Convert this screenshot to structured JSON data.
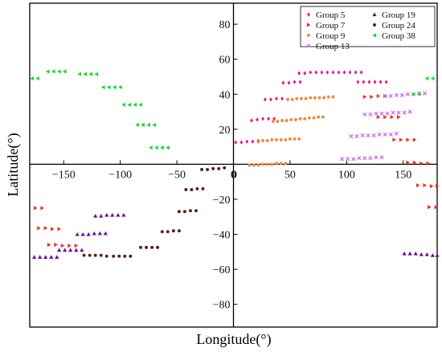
{
  "chart_data": {
    "type": "scatter",
    "xlabel": "Longitude(°)",
    "ylabel": "Latitude(°)",
    "xlim": [
      -180,
      180
    ],
    "ylim": [
      -93,
      92
    ],
    "xticks": [
      -150,
      -100,
      -50,
      0,
      50,
      100,
      150
    ],
    "yticks": [
      -80,
      -60,
      -40,
      -20,
      0,
      20,
      40,
      60,
      80
    ],
    "grid": false,
    "legend_position": "top-right",
    "series": [
      {
        "name": "Group 5",
        "marker": "diamond",
        "color": "#e8198a",
        "points": [
          [
            2,
            12.5
          ],
          [
            7,
            12.5
          ],
          [
            12,
            13
          ],
          [
            17,
            13
          ],
          [
            22,
            13
          ],
          [
            16,
            25
          ],
          [
            21,
            25.5
          ],
          [
            26,
            26
          ],
          [
            31,
            26
          ],
          [
            36,
            26
          ],
          [
            28,
            37
          ],
          [
            33,
            37
          ],
          [
            38,
            37.5
          ],
          [
            43,
            37.5
          ],
          [
            44,
            46.5
          ],
          [
            49,
            46.5
          ],
          [
            54,
            47
          ],
          [
            59,
            47
          ],
          [
            58,
            52
          ],
          [
            63,
            52
          ],
          [
            68,
            52.5
          ],
          [
            73,
            52.5
          ],
          [
            78,
            52.5
          ],
          [
            83,
            52.5
          ],
          [
            88,
            52.5
          ],
          [
            93,
            52.5
          ],
          [
            98,
            52.5
          ],
          [
            103,
            52.5
          ],
          [
            108,
            52.5
          ],
          [
            113,
            52.5
          ],
          [
            110,
            47
          ],
          [
            115,
            47
          ],
          [
            120,
            47
          ],
          [
            125,
            47
          ],
          [
            130,
            47
          ],
          [
            135,
            47
          ]
        ]
      },
      {
        "name": "Group 7",
        "marker": "triangle-right",
        "color": "#e8341c",
        "points": [
          [
            -175,
            -25
          ],
          [
            -169,
            -25
          ],
          [
            -172,
            -36.5
          ],
          [
            -166,
            -36.5
          ],
          [
            -160,
            -37
          ],
          [
            -154,
            -37
          ],
          [
            -163,
            -46
          ],
          [
            -157,
            -46
          ],
          [
            -151,
            -46.5
          ],
          [
            -145,
            -46.5
          ],
          [
            -139,
            -46.5
          ],
          [
            116,
            38.5
          ],
          [
            122,
            38.5
          ],
          [
            128,
            39
          ],
          [
            134,
            39
          ],
          [
            128,
            27
          ],
          [
            134,
            27
          ],
          [
            140,
            27
          ],
          [
            146,
            27
          ],
          [
            142,
            14
          ],
          [
            148,
            14
          ],
          [
            154,
            14
          ],
          [
            160,
            14
          ],
          [
            154,
            1
          ],
          [
            160,
            1
          ],
          [
            166,
            0.5
          ],
          [
            172,
            0.5
          ],
          [
            163,
            -12
          ],
          [
            169,
            -12
          ],
          [
            175,
            -12.5
          ],
          [
            180,
            -12.5
          ],
          [
            173,
            -24.5
          ],
          [
            179,
            -24.5
          ]
        ]
      },
      {
        "name": "Group 9",
        "marker": "dot",
        "color": "#f28a3a",
        "points": [
          [
            14,
            -0.5
          ],
          [
            18,
            -0.5
          ],
          [
            22,
            -0.5
          ],
          [
            26,
            0
          ],
          [
            30,
            0
          ],
          [
            34,
            0
          ],
          [
            38,
            0.5
          ],
          [
            42,
            0.5
          ],
          [
            46,
            0.5
          ],
          [
            22,
            13.5
          ],
          [
            26,
            13.5
          ],
          [
            30,
            13.5
          ],
          [
            34,
            14
          ],
          [
            38,
            14
          ],
          [
            42,
            14
          ],
          [
            46,
            14
          ],
          [
            50,
            14.5
          ],
          [
            54,
            14.5
          ],
          [
            58,
            14.5
          ],
          [
            35,
            24.5
          ],
          [
            39,
            24.5
          ],
          [
            43,
            25
          ],
          [
            47,
            25
          ],
          [
            51,
            25.5
          ],
          [
            55,
            25.5
          ],
          [
            59,
            26
          ],
          [
            63,
            26
          ],
          [
            67,
            26.5
          ],
          [
            71,
            26.5
          ],
          [
            75,
            27
          ],
          [
            79,
            27
          ],
          [
            48,
            37
          ],
          [
            52,
            37
          ],
          [
            56,
            37.5
          ],
          [
            60,
            37.5
          ],
          [
            64,
            37.5
          ],
          [
            68,
            38
          ],
          [
            72,
            38
          ],
          [
            76,
            38
          ],
          [
            80,
            38
          ],
          [
            84,
            38.5
          ],
          [
            88,
            38.5
          ]
        ]
      },
      {
        "name": "Group 13",
        "marker": "cross",
        "color": "#c866ea",
        "points": [
          [
            96,
            3
          ],
          [
            101,
            3
          ],
          [
            106,
            3
          ],
          [
            111,
            3.5
          ],
          [
            116,
            3.5
          ],
          [
            121,
            3.5
          ],
          [
            126,
            4
          ],
          [
            131,
            4
          ],
          [
            104,
            16
          ],
          [
            109,
            16
          ],
          [
            114,
            16.5
          ],
          [
            119,
            16.5
          ],
          [
            124,
            16.5
          ],
          [
            129,
            17
          ],
          [
            134,
            17
          ],
          [
            139,
            17
          ],
          [
            144,
            17.5
          ],
          [
            116,
            28.5
          ],
          [
            121,
            28.5
          ],
          [
            126,
            29
          ],
          [
            131,
            29
          ],
          [
            136,
            29
          ],
          [
            141,
            29.5
          ],
          [
            146,
            29.5
          ],
          [
            151,
            29.5
          ],
          [
            156,
            30
          ],
          [
            134,
            39
          ],
          [
            139,
            39
          ],
          [
            144,
            39.5
          ],
          [
            149,
            39.5
          ],
          [
            154,
            40
          ],
          [
            159,
            40
          ],
          [
            164,
            40.5
          ],
          [
            169,
            40.5
          ]
        ]
      },
      {
        "name": "Group 19",
        "marker": "triangle-up",
        "color": "#6a0d9c",
        "points": [
          [
            -176,
            -53
          ],
          [
            -171,
            -53
          ],
          [
            -166,
            -53
          ],
          [
            -161,
            -53
          ],
          [
            -156,
            -53
          ],
          [
            -154,
            -49
          ],
          [
            -149,
            -49
          ],
          [
            -144,
            -49
          ],
          [
            -139,
            -49
          ],
          [
            -134,
            -49
          ],
          [
            -138,
            -40
          ],
          [
            -133,
            -40
          ],
          [
            -128,
            -40
          ],
          [
            -123,
            -39.5
          ],
          [
            -118,
            -39.5
          ],
          [
            -113,
            -39.5
          ],
          [
            -122,
            -29.5
          ],
          [
            -117,
            -29.5
          ],
          [
            -112,
            -29
          ],
          [
            -107,
            -29
          ],
          [
            -102,
            -29
          ],
          [
            -97,
            -29
          ],
          [
            151,
            -51
          ],
          [
            156,
            -51
          ],
          [
            161,
            -51
          ],
          [
            166,
            -51.5
          ],
          [
            171,
            -51.5
          ],
          [
            176,
            -52
          ],
          [
            180,
            -52
          ]
        ]
      },
      {
        "name": "Group 24",
        "marker": "dot",
        "color": "#5a1c0c",
        "points": [
          [
            -132,
            -52
          ],
          [
            -127,
            -52
          ],
          [
            -122,
            -52
          ],
          [
            -117,
            -52
          ],
          [
            -112,
            -52.5
          ],
          [
            -106,
            -52.5
          ],
          [
            -101,
            -52.5
          ],
          [
            -96,
            -52.5
          ],
          [
            -91,
            -52.5
          ],
          [
            -82,
            -47.5
          ],
          [
            -77,
            -47.5
          ],
          [
            -72,
            -47.5
          ],
          [
            -67,
            -47.5
          ],
          [
            -63,
            -38.5
          ],
          [
            -58,
            -38.5
          ],
          [
            -53,
            -38
          ],
          [
            -48,
            -38
          ],
          [
            -48,
            -27
          ],
          [
            -43,
            -27
          ],
          [
            -38,
            -26.5
          ],
          [
            -33,
            -26.5
          ],
          [
            -42,
            -14.5
          ],
          [
            -37,
            -14.5
          ],
          [
            -32,
            -14
          ],
          [
            -27,
            -14
          ],
          [
            -28,
            -3
          ],
          [
            -23,
            -3
          ],
          [
            -18,
            -2.5
          ],
          [
            -13,
            -2.5
          ],
          [
            -8,
            -2
          ]
        ]
      },
      {
        "name": "Group 38",
        "marker": "triangle-left",
        "color": "#14dc28",
        "points": [
          [
            -178,
            49
          ],
          [
            -173,
            49
          ],
          [
            -164,
            53
          ],
          [
            -159,
            53
          ],
          [
            -154,
            53
          ],
          [
            -149,
            53
          ],
          [
            -136,
            51.5
          ],
          [
            -131,
            51.5
          ],
          [
            -126,
            51.5
          ],
          [
            -121,
            51.5
          ],
          [
            -115,
            44
          ],
          [
            -110,
            44
          ],
          [
            -105,
            44
          ],
          [
            -100,
            44
          ],
          [
            -97,
            34
          ],
          [
            -92,
            34
          ],
          [
            -87,
            34
          ],
          [
            -82,
            34
          ],
          [
            -85,
            22.5
          ],
          [
            -80,
            22.5
          ],
          [
            -75,
            22.5
          ],
          [
            -70,
            22.5
          ],
          [
            -73,
            9.5
          ],
          [
            -68,
            9.5
          ],
          [
            -63,
            9.5
          ],
          [
            -58,
            9.5
          ],
          [
            159,
            40
          ],
          [
            164,
            40
          ],
          [
            171,
            49
          ],
          [
            176,
            49
          ]
        ]
      }
    ]
  }
}
